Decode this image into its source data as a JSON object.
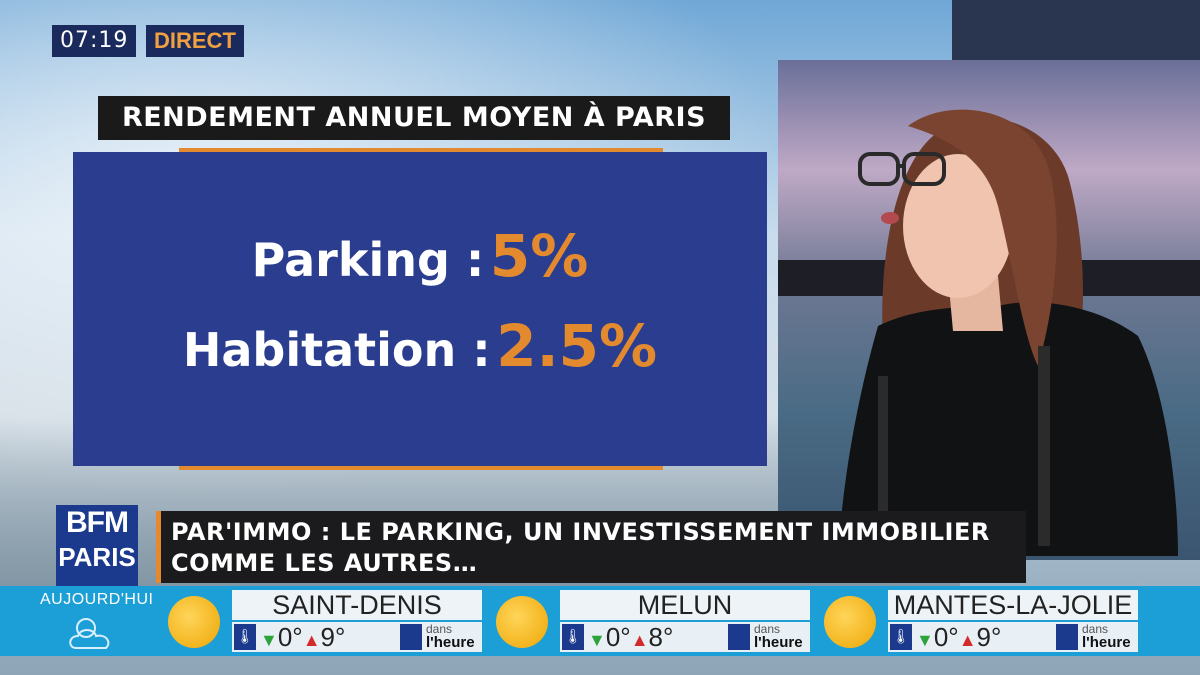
{
  "broadcast": {
    "clock": "07:19",
    "live_label": "DIRECT"
  },
  "infographic": {
    "title": "RENDEMENT ANNUEL MOYEN À PARIS",
    "rows": [
      {
        "label": "Parking :",
        "value": "5%"
      },
      {
        "label": "Habitation :",
        "value": "2.5%"
      }
    ]
  },
  "channel": {
    "logo_top": "BFM",
    "logo_bottom": "PARIS",
    "today_label": "AUJOURD'HUI"
  },
  "headline": {
    "line1": "PAR'IMMO : LE PARKING, UN INVESTISSEMENT IMMOBILIER",
    "line2": "COMME LES AUTRES…"
  },
  "weather": [
    {
      "city": "SAINT-DENIS",
      "min": "0°",
      "max": "9°",
      "dans": "dans",
      "heure": "l'heure"
    },
    {
      "city": "MELUN",
      "min": "0°",
      "max": "8°",
      "dans": "dans",
      "heure": "l'heure"
    },
    {
      "city": "MANTES-LA-JOLIE",
      "min": "0°",
      "max": "9°",
      "dans": "dans",
      "heure": "l'heure"
    }
  ],
  "colors": {
    "accent_orange": "#e48a2e",
    "card_blue": "#2a3d8f",
    "ticker_blue": "#1c9fd6",
    "logo_blue": "#1b3a8e"
  }
}
